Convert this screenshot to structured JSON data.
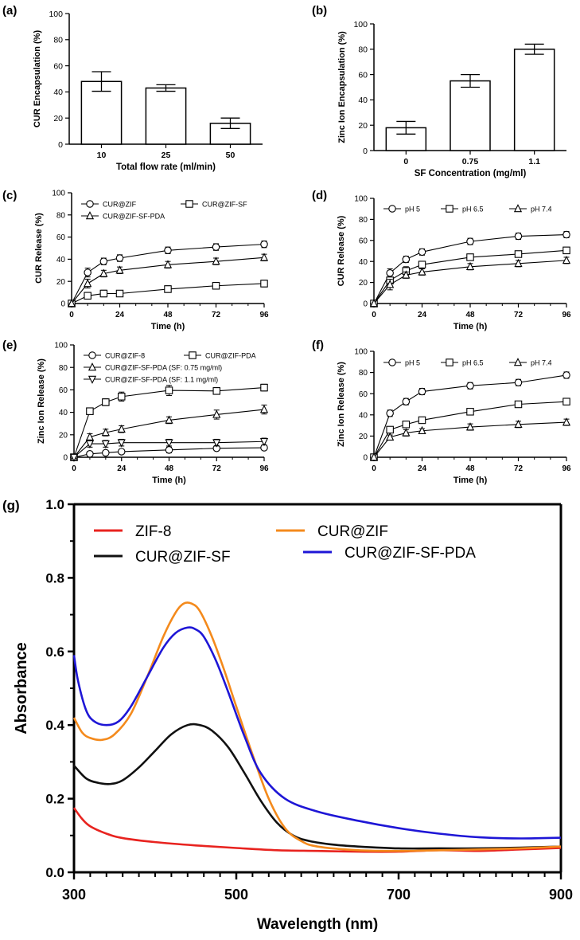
{
  "panels": {
    "a": "(a)",
    "b": "(b)",
    "c": "(c)",
    "d": "(d)",
    "e": "(e)",
    "f": "(f)",
    "g": "(g)"
  },
  "chart_data": [
    {
      "id": "a",
      "type": "bar",
      "xlabel": "Total flow rate (ml/min)",
      "ylabel": "CUR Encapsulation (%)",
      "ylim": [
        0,
        100
      ],
      "yticks": [
        0,
        20,
        40,
        60,
        80,
        100
      ],
      "categories": [
        "10",
        "25",
        "50"
      ],
      "values": [
        48,
        43,
        16
      ],
      "errors": [
        7.5,
        2.5,
        4
      ]
    },
    {
      "id": "b",
      "type": "bar",
      "xlabel": "SF Concentration (mg/ml)",
      "ylabel": "Zinc Ion Encapsulation (%)",
      "ylim": [
        0,
        100
      ],
      "yticks": [
        0,
        20,
        40,
        60,
        80,
        100
      ],
      "categories": [
        "0",
        "0.75",
        "1.1"
      ],
      "values": [
        18,
        55,
        80
      ],
      "errors": [
        5,
        5,
        4
      ]
    },
    {
      "id": "c",
      "type": "line",
      "xlabel": "Time (h)",
      "ylabel": "CUR Release (%)",
      "xlim": [
        0,
        96
      ],
      "ylim": [
        0,
        100
      ],
      "xticks": [
        0,
        24,
        48,
        72,
        96
      ],
      "yticks": [
        0,
        20,
        40,
        60,
        80,
        100
      ],
      "x": [
        0,
        8,
        16,
        24,
        48,
        72,
        96
      ],
      "series": [
        {
          "name": "CUR@ZIF",
          "marker": "circle",
          "values": [
            0,
            28,
            38,
            41,
            48,
            51,
            53.5
          ],
          "errors": [
            0,
            4,
            3,
            3,
            3,
            3,
            3
          ]
        },
        {
          "name": "CUR@ZIF-SF",
          "marker": "square",
          "values": [
            0,
            7,
            9,
            9,
            13,
            16,
            18
          ],
          "errors": [
            0,
            3,
            3,
            2,
            3,
            3,
            3
          ]
        },
        {
          "name": "CUR@ZIF-SF-PDA",
          "marker": "triangle",
          "values": [
            0,
            18,
            27,
            30,
            35,
            38,
            41.5
          ],
          "errors": [
            0,
            4,
            3,
            3,
            3,
            3,
            3
          ]
        }
      ]
    },
    {
      "id": "d",
      "type": "line",
      "xlabel": "Time (h)",
      "ylabel": "CUR Release (%)",
      "xlim": [
        0,
        96
      ],
      "ylim": [
        0,
        100
      ],
      "xticks": [
        0,
        24,
        48,
        72,
        96
      ],
      "yticks": [
        0,
        20,
        40,
        60,
        80,
        100
      ],
      "x": [
        0,
        8,
        16,
        24,
        48,
        72,
        96
      ],
      "series": [
        {
          "name": "pH 5",
          "marker": "circle",
          "values": [
            0,
            29,
            42,
            49,
            59,
            64,
            65.5
          ],
          "errors": [
            0,
            4,
            3,
            3,
            3,
            3,
            3
          ]
        },
        {
          "name": "pH 6.5",
          "marker": "square",
          "values": [
            0,
            22,
            31,
            37,
            44,
            47,
            50.5
          ],
          "errors": [
            0,
            3,
            4,
            3,
            3,
            3,
            3
          ]
        },
        {
          "name": "pH 7.4",
          "marker": "triangle",
          "values": [
            0,
            18,
            27,
            30,
            35,
            38,
            41
          ],
          "errors": [
            0,
            5,
            3,
            3,
            3,
            3,
            3
          ]
        }
      ]
    },
    {
      "id": "e",
      "type": "line",
      "xlabel": "Time (h)",
      "ylabel": "Zinc Ion Release (%)",
      "xlim": [
        0,
        96
      ],
      "ylim": [
        0,
        100
      ],
      "xticks": [
        0,
        24,
        48,
        72,
        96
      ],
      "yticks": [
        0,
        20,
        40,
        60,
        80,
        100
      ],
      "x": [
        0,
        8,
        16,
        24,
        48,
        72,
        96
      ],
      "series": [
        {
          "name": "CUR@ZIF-8",
          "marker": "circle",
          "values": [
            0,
            3,
            4,
            5,
            6.5,
            8,
            8.5
          ],
          "errors": [
            0,
            2,
            2,
            2,
            2.5,
            2,
            2
          ]
        },
        {
          "name": "CUR@ZIF-PDA",
          "marker": "square",
          "values": [
            0,
            41,
            49,
            54,
            59.5,
            59,
            62
          ],
          "errors": [
            0,
            2,
            3,
            4,
            4.5,
            3,
            3
          ]
        },
        {
          "name": "CUR@ZIF-SF-PDA (SF: 0.75 mg/ml)",
          "marker": "triangle",
          "values": [
            0,
            18,
            22,
            25,
            33,
            38,
            42.5
          ],
          "errors": [
            0,
            3,
            3,
            3,
            3,
            4,
            4
          ]
        },
        {
          "name": "CUR@ZIF-SF-PDA (SF: 1.1 mg/ml)",
          "marker": "triangle-down",
          "values": [
            0,
            12,
            12,
            13,
            13,
            13,
            14
          ],
          "errors": [
            0,
            3,
            3,
            3,
            3,
            3,
            3
          ]
        }
      ]
    },
    {
      "id": "f",
      "type": "line",
      "xlabel": "Time (h)",
      "ylabel": "Zinc Ion Release (%)",
      "xlim": [
        0,
        96
      ],
      "ylim": [
        0,
        100
      ],
      "xticks": [
        0,
        24,
        48,
        72,
        96
      ],
      "yticks": [
        0,
        20,
        40,
        60,
        80,
        100
      ],
      "x": [
        0,
        8,
        16,
        24,
        48,
        72,
        96
      ],
      "series": [
        {
          "name": "pH 5",
          "marker": "circle",
          "values": [
            0,
            41.5,
            52.5,
            62,
            67.5,
            70.5,
            77.5
          ],
          "errors": [
            0,
            3,
            3,
            3,
            3,
            3,
            3
          ]
        },
        {
          "name": "pH 6.5",
          "marker": "square",
          "values": [
            0,
            26,
            31,
            35,
            43,
            50,
            52.5
          ],
          "errors": [
            0,
            2,
            3,
            2,
            2,
            3,
            2
          ]
        },
        {
          "name": "pH 7.4",
          "marker": "triangle",
          "values": [
            0,
            19,
            23,
            25,
            28.5,
            31,
            33
          ],
          "errors": [
            0,
            2,
            3,
            2,
            3,
            3,
            3
          ]
        }
      ]
    },
    {
      "id": "g",
      "type": "line",
      "xlabel": "Wavelength (nm)",
      "ylabel": "Absorbance",
      "xlim": [
        300,
        900
      ],
      "ylim": [
        0,
        1.0
      ],
      "xticks": [
        "300",
        "500",
        "700",
        "900"
      ],
      "yticks": [
        "0.0",
        "0.2",
        "0.4",
        "0.6",
        "0.8",
        "1.0"
      ],
      "series": [
        {
          "name": "ZIF-8",
          "color": "#e8231f",
          "x": [
            300,
            310,
            320,
            340,
            360,
            400,
            450,
            500,
            550,
            600,
            650,
            700,
            750,
            800,
            850,
            900
          ],
          "values": [
            0.175,
            0.145,
            0.125,
            0.105,
            0.093,
            0.082,
            0.073,
            0.066,
            0.06,
            0.058,
            0.056,
            0.056,
            0.06,
            0.058,
            0.062,
            0.066
          ]
        },
        {
          "name": "CUR@ZIF",
          "color": "#f48a1c",
          "x": [
            300,
            310,
            320,
            335,
            350,
            370,
            390,
            410,
            425,
            435,
            445,
            455,
            470,
            485,
            500,
            520,
            540,
            560,
            580,
            600,
            650,
            700,
            750,
            800,
            850,
            900
          ],
          "values": [
            0.42,
            0.38,
            0.365,
            0.36,
            0.375,
            0.43,
            0.53,
            0.64,
            0.705,
            0.73,
            0.73,
            0.71,
            0.64,
            0.55,
            0.45,
            0.32,
            0.2,
            0.12,
            0.085,
            0.07,
            0.06,
            0.058,
            0.06,
            0.062,
            0.065,
            0.07
          ]
        },
        {
          "name": "CUR@ZIF-SF",
          "color": "#111111",
          "x": [
            300,
            315,
            330,
            345,
            360,
            380,
            400,
            420,
            440,
            455,
            470,
            490,
            510,
            530,
            550,
            570,
            590,
            620,
            650,
            700,
            750,
            800,
            850,
            900
          ],
          "values": [
            0.29,
            0.255,
            0.243,
            0.24,
            0.25,
            0.285,
            0.33,
            0.375,
            0.4,
            0.4,
            0.385,
            0.34,
            0.27,
            0.195,
            0.135,
            0.1,
            0.085,
            0.075,
            0.07,
            0.065,
            0.065,
            0.065,
            0.067,
            0.07
          ]
        },
        {
          "name": "CUR@ZIF-SF-PDA",
          "color": "#1e16d6",
          "x": [
            300,
            305,
            315,
            325,
            340,
            355,
            370,
            390,
            410,
            425,
            440,
            450,
            460,
            475,
            490,
            510,
            530,
            560,
            600,
            650,
            700,
            750,
            800,
            850,
            900
          ],
          "values": [
            0.59,
            0.52,
            0.44,
            0.41,
            0.4,
            0.41,
            0.45,
            0.53,
            0.61,
            0.65,
            0.665,
            0.66,
            0.64,
            0.575,
            0.49,
            0.37,
            0.27,
            0.2,
            0.165,
            0.14,
            0.12,
            0.105,
            0.095,
            0.092,
            0.094
          ]
        }
      ]
    }
  ]
}
